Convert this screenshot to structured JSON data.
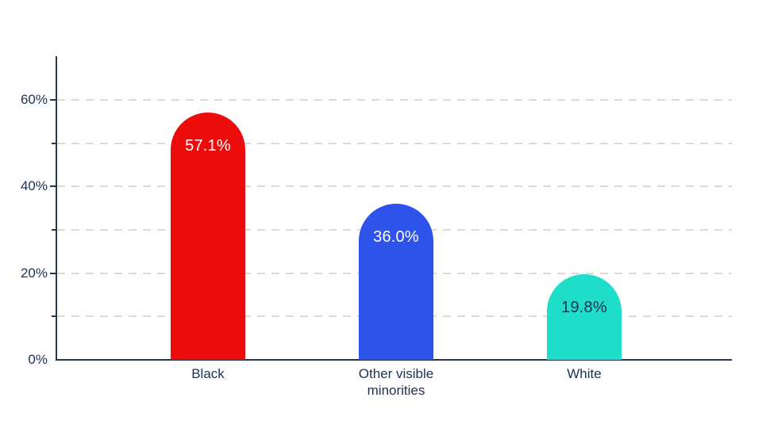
{
  "chart_data": {
    "type": "bar",
    "title": "",
    "xlabel": "",
    "ylabel": "",
    "categories": [
      "Black",
      "Other visible minorities",
      "White"
    ],
    "values": [
      57.1,
      36.0,
      19.8
    ],
    "value_labels": [
      "57.1%",
      "36.0%",
      "19.8%"
    ],
    "series_colors": [
      "#ec0c0c",
      "#2e53ea",
      "#1eddc9"
    ],
    "value_label_colors": [
      "#ffffff",
      "#ffffff",
      "#1a3350"
    ],
    "ylim": [
      0,
      70
    ],
    "y_ticks": [
      {
        "value": 0,
        "label": "0%"
      },
      {
        "value": 20,
        "label": "20%"
      },
      {
        "value": 40,
        "label": "40%"
      },
      {
        "value": 60,
        "label": "60%"
      }
    ],
    "y_minor_ticks": [
      10,
      30,
      50
    ],
    "gridline_values": [
      10,
      20,
      30,
      40,
      50,
      60
    ],
    "grid_style": "dashed-horizontal",
    "legend": "none"
  },
  "style": {
    "background": "#ffffff",
    "axis_color": "#22374d",
    "text_color": "#1a3350",
    "grid_color": "#ded9d2"
  }
}
